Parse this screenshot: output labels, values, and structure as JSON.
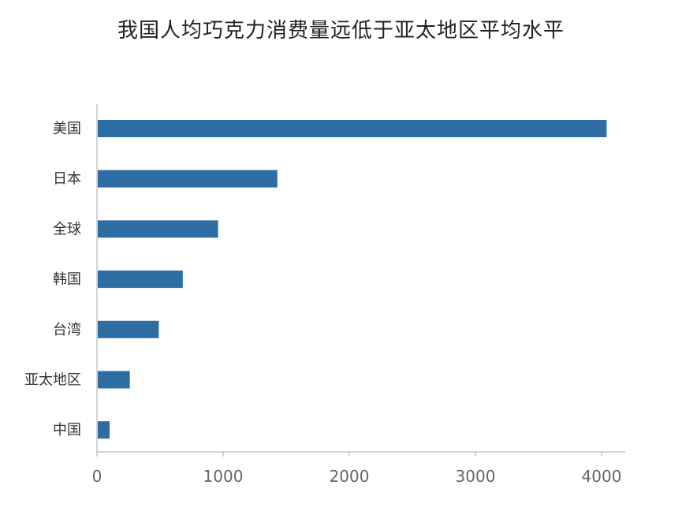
{
  "chart_data": {
    "type": "bar",
    "orientation": "horizontal",
    "title": "我国人均巧克力消费量远低于亚太地区平均水平",
    "categories": [
      "美国",
      "日本",
      "全球",
      "韩国",
      "台湾",
      "亚太地区",
      "中国"
    ],
    "values": [
      4040,
      1430,
      960,
      680,
      490,
      260,
      100
    ],
    "xlim": [
      0,
      4200
    ],
    "xticks": [
      0,
      1000,
      2000,
      3000,
      4000
    ],
    "xlabel": "",
    "ylabel": "",
    "grid": false,
    "legend": "none",
    "bar_color": "#2e6da4",
    "axis_color": "#aaaaaa"
  }
}
